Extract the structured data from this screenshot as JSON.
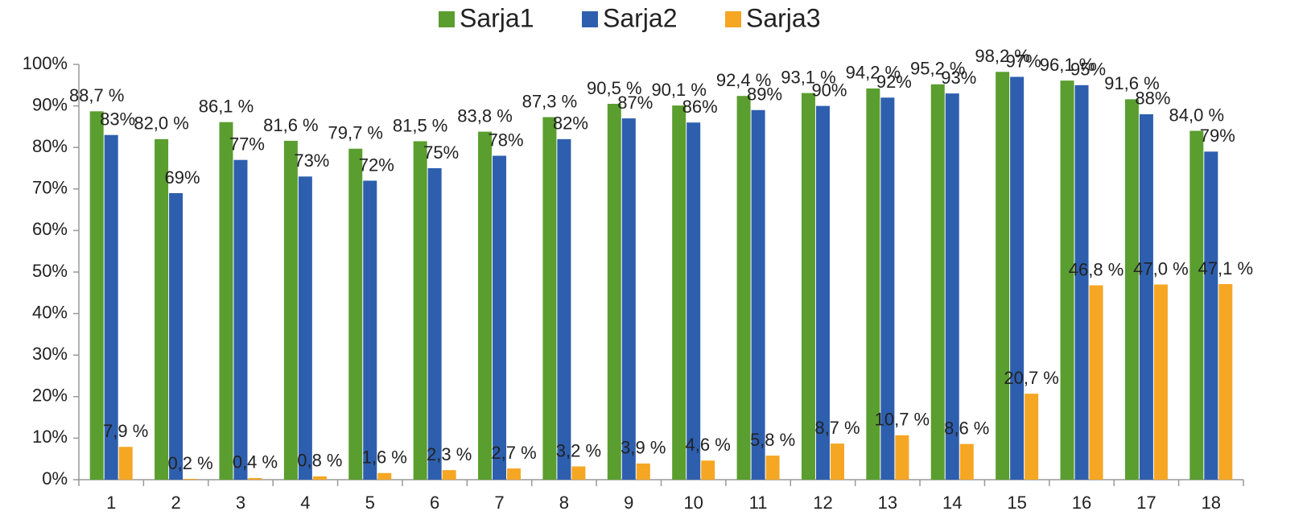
{
  "chart_data": {
    "type": "bar",
    "categories": [
      "1",
      "2",
      "3",
      "4",
      "5",
      "6",
      "7",
      "8",
      "9",
      "10",
      "11",
      "12",
      "13",
      "14",
      "15",
      "16",
      "17",
      "18"
    ],
    "series": [
      {
        "name": "Sarja1",
        "color": "#5a9e2f",
        "values": [
          88.7,
          82.0,
          86.1,
          81.6,
          79.7,
          81.5,
          83.8,
          87.3,
          90.5,
          90.1,
          92.4,
          93.1,
          94.2,
          95.2,
          98.2,
          96.1,
          91.6,
          84.0
        ],
        "value_labels": [
          "88,7 %",
          "82,0 %",
          "86,1 %",
          "81,6 %",
          "79,7 %",
          "81,5 %",
          "83,8 %",
          "87,3 %",
          "90,5 %",
          "90,1 %",
          "92,4 %",
          "93,1 %",
          "94,2 %",
          "95,2 %",
          "98,2 %",
          "96,1 %",
          "91,6 %",
          "84,0 %"
        ]
      },
      {
        "name": "Sarja2",
        "color": "#2e5fae",
        "values": [
          83,
          69,
          77,
          73,
          72,
          75,
          78,
          82,
          87,
          86,
          89,
          90,
          92,
          93,
          97,
          95,
          88,
          79
        ],
        "value_labels": [
          "83%",
          "69%",
          "77%",
          "73%",
          "72%",
          "75%",
          "78%",
          "82%",
          "87%",
          "86%",
          "89%",
          "90%",
          "92%",
          "93%",
          "97%",
          "95%",
          "88%",
          "79%"
        ]
      },
      {
        "name": "Sarja3",
        "color": "#f5a623",
        "values": [
          7.9,
          0.2,
          0.4,
          0.8,
          1.6,
          2.3,
          2.7,
          3.2,
          3.9,
          4.6,
          5.8,
          8.7,
          10.7,
          8.6,
          20.7,
          46.8,
          47.0,
          47.1
        ],
        "value_labels": [
          "7,9 %",
          "0,2 %",
          "0,4 %",
          "0,8 %",
          "1,6 %",
          "2,3 %",
          "2,7 %",
          "3,2 %",
          "3,9 %",
          "4,6 %",
          "5,8 %",
          "8,7 %",
          "10,7 %",
          "8,6 %",
          "20,7 %",
          "46,8 %",
          "47,0 %",
          "47,1 %"
        ]
      }
    ],
    "ylim": [
      0,
      100
    ],
    "yticks": [
      {
        "value": 0,
        "label": "0%"
      },
      {
        "value": 10,
        "label": "10%"
      },
      {
        "value": 20,
        "label": "20%"
      },
      {
        "value": 30,
        "label": "30%"
      },
      {
        "value": 40,
        "label": "40%"
      },
      {
        "value": 50,
        "label": "50%"
      },
      {
        "value": 60,
        "label": "60%"
      },
      {
        "value": 70,
        "label": "70%"
      },
      {
        "value": 80,
        "label": "80%"
      },
      {
        "value": 90,
        "label": "90%"
      },
      {
        "value": 100,
        "label": "100%"
      }
    ],
    "grid": false,
    "legend": "top"
  }
}
